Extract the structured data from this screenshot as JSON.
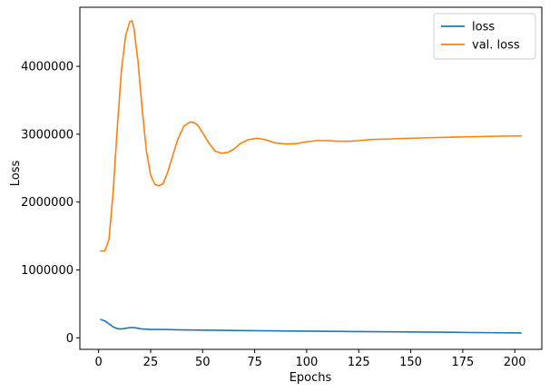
{
  "chart_data": {
    "type": "line",
    "xlabel": "Epochs",
    "ylabel": "Loss",
    "xlim": [
      -9,
      213
    ],
    "ylim": [
      -170000,
      4870000
    ],
    "xticks": [
      0,
      25,
      50,
      75,
      100,
      125,
      150,
      175,
      200
    ],
    "yticks": [
      0,
      1000000,
      2000000,
      3000000,
      4000000
    ],
    "grid": false,
    "legend_position": "top-right",
    "series": [
      {
        "name": "loss",
        "color": "#1f77b4",
        "x": [
          1,
          3,
          5,
          7,
          9,
          11,
          13,
          15,
          17,
          19,
          21,
          25,
          30,
          35,
          40,
          50,
          60,
          75,
          100,
          125,
          150,
          175,
          203
        ],
        "y": [
          270000,
          250000,
          205000,
          160000,
          135000,
          130000,
          140000,
          150000,
          150000,
          140000,
          130000,
          123000,
          123000,
          120000,
          117000,
          113000,
          110000,
          105000,
          98000,
          92000,
          86000,
          79000,
          72000
        ]
      },
      {
        "name": "val. loss",
        "color": "#ff7f0e",
        "x": [
          1,
          3,
          5,
          7,
          9,
          11,
          13,
          15,
          16,
          17,
          19,
          21,
          23,
          25,
          27,
          29,
          31,
          33,
          35,
          38,
          41,
          44,
          46,
          48,
          50,
          53,
          56,
          59,
          62,
          65,
          68,
          72,
          76,
          80,
          85,
          90,
          95,
          100,
          105,
          110,
          115,
          120,
          125,
          130,
          140,
          150,
          160,
          175,
          190,
          203
        ],
        "y": [
          1280000,
          1280000,
          1450000,
          2150000,
          3100000,
          3950000,
          4450000,
          4660000,
          4670000,
          4560000,
          4050000,
          3350000,
          2750000,
          2400000,
          2260000,
          2240000,
          2270000,
          2420000,
          2620000,
          2920000,
          3120000,
          3180000,
          3170000,
          3120000,
          3020000,
          2870000,
          2750000,
          2720000,
          2730000,
          2780000,
          2860000,
          2920000,
          2940000,
          2920000,
          2870000,
          2855000,
          2860000,
          2890000,
          2905000,
          2905000,
          2895000,
          2895000,
          2905000,
          2920000,
          2930000,
          2940000,
          2950000,
          2960000,
          2970000,
          2975000
        ]
      }
    ]
  }
}
